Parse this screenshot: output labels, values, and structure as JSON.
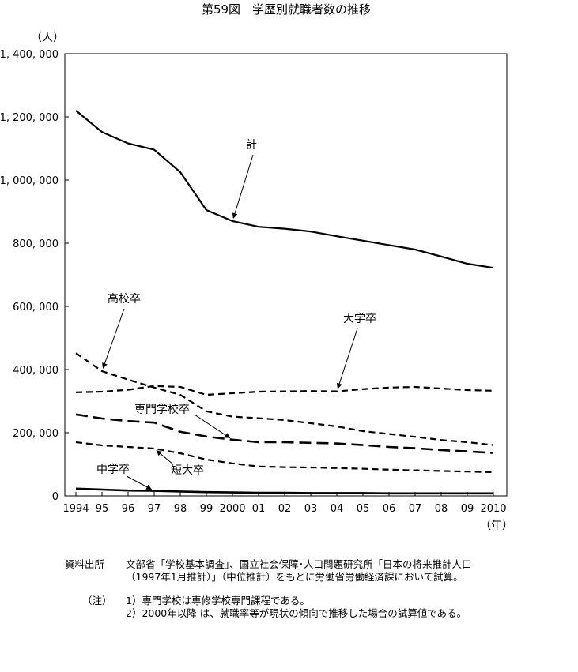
{
  "chart_data": {
    "type": "line",
    "title": "第59図　学歴別就職者数の推移",
    "ylabel": "（人）",
    "xlabel": "（年）",
    "ylim": [
      0,
      1400000
    ],
    "yticks": [
      0,
      200000,
      400000,
      600000,
      800000,
      1000000,
      1200000,
      1400000
    ],
    "ytick_labels": [
      "0",
      "200, 000",
      "400, 000",
      "600, 000",
      "800, 000",
      "1, 000, 000",
      "1, 200, 000",
      "1, 400, 000"
    ],
    "categories": [
      "1994",
      "95",
      "96",
      "97",
      "98",
      "99",
      "2000",
      "01",
      "02",
      "03",
      "04",
      "05",
      "06",
      "07",
      "08",
      "09",
      "2010"
    ],
    "series": [
      {
        "name": "計",
        "style": "solid",
        "width": 2.2,
        "values": [
          1220000,
          1152000,
          1116000,
          1096000,
          1025000,
          905000,
          870000,
          852000,
          846000,
          837000,
          822000,
          808000,
          794000,
          780000,
          758000,
          735000,
          722000
        ]
      },
      {
        "name": "高校卒",
        "style": "dash-medium",
        "width": 2.2,
        "values": [
          452000,
          395000,
          368000,
          343000,
          320000,
          268000,
          251000,
          246000,
          240000,
          230000,
          220000,
          205000,
          196000,
          187000,
          177000,
          170000,
          161000
        ]
      },
      {
        "name": "大学卒",
        "style": "dash-medium",
        "width": 2.2,
        "values": [
          328000,
          330000,
          336000,
          348000,
          345000,
          320000,
          325000,
          330000,
          331000,
          332000,
          331000,
          338000,
          343000,
          345000,
          340000,
          335000,
          333000
        ]
      },
      {
        "name": "専門学校卒",
        "style": "dash-long",
        "width": 2.6,
        "values": [
          258000,
          245000,
          237000,
          232000,
          203000,
          188000,
          178000,
          170000,
          170000,
          168000,
          166000,
          161000,
          155000,
          151000,
          145000,
          141000,
          136000
        ]
      },
      {
        "name": "短大卒",
        "style": "dash-medium",
        "width": 2.2,
        "values": [
          170000,
          160000,
          155000,
          150000,
          135000,
          115000,
          103000,
          93000,
          91000,
          90000,
          88000,
          86000,
          83000,
          81000,
          79000,
          77000,
          75000
        ]
      },
      {
        "name": "中学卒",
        "style": "solid",
        "width": 2.6,
        "values": [
          23000,
          20000,
          17000,
          16000,
          14000,
          12000,
          11000,
          10000,
          10000,
          9000,
          9000,
          9000,
          8000,
          8000,
          8000,
          8000,
          8000
        ]
      }
    ],
    "annotations": [
      {
        "text": "計",
        "arrow_to_index": 6,
        "series": "計"
      },
      {
        "text": "高校卒",
        "arrow_to_index": 1,
        "series": "高校卒"
      },
      {
        "text": "大学卒",
        "arrow_to_index": 10,
        "series": "大学卒"
      },
      {
        "text": "専門学校卒",
        "arrow_to_index": 6,
        "series": "専門学校卒"
      },
      {
        "text": "短大卒",
        "arrow_to_index": 3,
        "series": "短大卒"
      },
      {
        "text": "中学卒",
        "arrow_to_index": 3,
        "series": "中学卒"
      }
    ]
  },
  "notes": {
    "source_label": "資料出所",
    "source_text": "文部省「学校基本調査」、国立社会保障･人口問題研究所「日本の将来推計人口（1997年1月推計）」（中位推計）をもとに労働省労働経済課において試算。",
    "note_label": "（注）",
    "note1_num": "1）",
    "note1": "専門学校は専修学校専門課程である。",
    "note2_num": "2）",
    "note2": "2000年以降 は、就職率等が現状の傾向で推移した場合の試算値である。"
  }
}
